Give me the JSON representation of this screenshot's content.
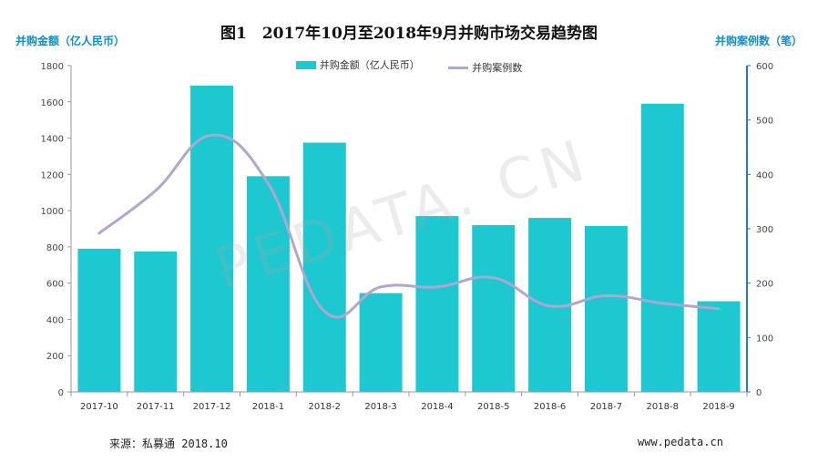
{
  "page": {
    "title": "图1　2017年10月至2018年9月并购市场交易趋势图",
    "left_axis_title": "并购金额（亿人民币）",
    "right_axis_title": "并购案例数（笔）",
    "source": "来源：私募通 2018.10",
    "website": "www.pedata.cn",
    "watermark": "PEDATA. CN"
  },
  "colors": {
    "bar": "#1ec8d0",
    "line": "#b2a5cf",
    "axis_title": "#0e8fc8",
    "right_axis": "#1f7fc0"
  },
  "chart_data": {
    "type": "bar",
    "title": "2017年10月至2018年9月并购市场交易趋势图",
    "categories": [
      "2017-10",
      "2017-11",
      "2017-12",
      "2018-1",
      "2018-2",
      "2018-3",
      "2018-4",
      "2018-5",
      "2018-6",
      "2018-7",
      "2018-8",
      "2018-9"
    ],
    "series": [
      {
        "name": "并购金额（亿人民币）",
        "type": "bar",
        "axis": "left",
        "values": [
          790,
          775,
          1690,
          1190,
          1375,
          545,
          970,
          920,
          960,
          915,
          1590,
          500
        ]
      },
      {
        "name": "并购案例数",
        "type": "line",
        "axis": "right",
        "values": [
          292,
          370,
          472,
          383,
          148,
          193,
          193,
          210,
          158,
          177,
          163,
          153
        ]
      }
    ],
    "ylim_left": [
      0,
      1800
    ],
    "yticks_left": [
      0,
      200,
      400,
      600,
      800,
      1000,
      1200,
      1400,
      1600,
      1800
    ],
    "ylim_right": [
      0,
      600
    ],
    "yticks_right": [
      0,
      100,
      200,
      300,
      400,
      500,
      600
    ],
    "ylabel_left": "并购金额（亿人民币）",
    "ylabel_right": "并购案例数（笔）",
    "legend": [
      "并购金额（亿人民币）",
      "并购案例数"
    ],
    "legend_position": "top-center"
  }
}
